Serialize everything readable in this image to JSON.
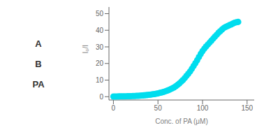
{
  "chart_data": {
    "type": "scatter",
    "x_label": "Conc. of PA (μM)",
    "y_label": "I₀/I",
    "annotations": [
      "A",
      "B",
      "PA"
    ],
    "x": [
      0,
      2,
      4,
      6,
      8,
      10,
      12,
      14,
      16,
      18,
      20,
      22,
      24,
      26,
      28,
      30,
      32,
      34,
      36,
      38,
      40,
      42,
      44,
      46,
      48,
      50,
      52,
      54,
      56,
      58,
      60,
      62,
      64,
      66,
      68,
      70,
      72,
      74,
      76,
      78,
      80,
      82,
      84,
      86,
      88,
      90,
      92,
      94,
      96,
      98,
      100,
      102,
      104,
      106,
      108,
      110,
      112,
      114,
      116,
      118,
      120,
      122,
      124,
      126,
      128,
      130,
      132,
      134,
      136,
      138,
      140
    ],
    "values": [
      0.1,
      0.12,
      0.14,
      0.16,
      0.18,
      0.2,
      0.22,
      0.25,
      0.28,
      0.31,
      0.35,
      0.39,
      0.44,
      0.49,
      0.55,
      0.62,
      0.7,
      0.79,
      0.89,
      1.0,
      1.13,
      1.27,
      1.43,
      1.6,
      1.8,
      2.02,
      2.27,
      2.55,
      2.86,
      3.2,
      3.59,
      4.0,
      4.47,
      5.0,
      5.6,
      6.3,
      7.1,
      8.0,
      9.0,
      10.0,
      11.2,
      12.5,
      13.8,
      15.2,
      16.8,
      18.5,
      20.2,
      22.0,
      23.9,
      25.8,
      27.5,
      28.9,
      30.2,
      31.4,
      32.6,
      33.8,
      35.0,
      36.2,
      37.3,
      38.5,
      39.5,
      40.5,
      41.4,
      42.0,
      42.5,
      43.0,
      43.5,
      44.0,
      44.5,
      44.8,
      45.0
    ],
    "color": "#00DDEE",
    "marker": "circle",
    "xlim": [
      -5,
      158
    ],
    "ylim": [
      -2,
      54
    ],
    "xticks": [
      0,
      50,
      100,
      150
    ],
    "yticks": [
      0,
      10,
      20,
      30,
      40,
      50
    ],
    "grid": false
  }
}
